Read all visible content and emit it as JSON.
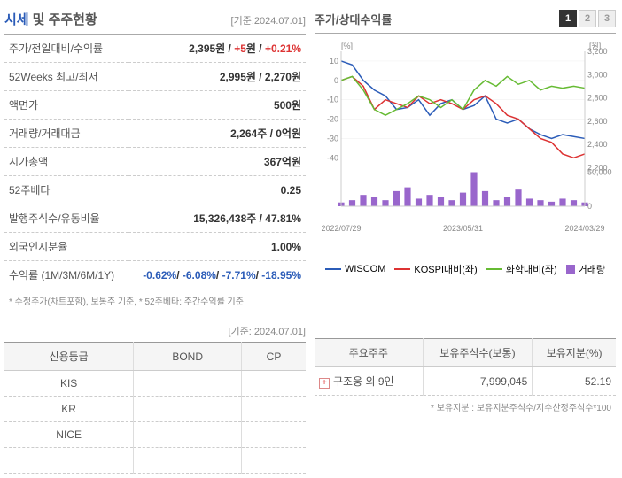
{
  "header": {
    "title_main": "시세",
    "title_sub": "및 주주현황",
    "date_ref": "[기준:2024.07.01]"
  },
  "stats": {
    "rows": [
      {
        "label": "주가/전일대비/수익률",
        "value_parts": [
          {
            "text": "2,395",
            "class": ""
          },
          {
            "text": "원 / ",
            "class": ""
          },
          {
            "text": "+5",
            "class": "red-text"
          },
          {
            "text": "원 / ",
            "class": ""
          },
          {
            "text": "+0.21%",
            "class": "red-text"
          }
        ]
      },
      {
        "label": "52Weeks 최고/최저",
        "value": "2,995원 / 2,270원"
      },
      {
        "label": "액면가",
        "value": "500원"
      },
      {
        "label": "거래량/거래대금",
        "value": "2,264주 / 0억원"
      },
      {
        "label": "시가총액",
        "value": "367억원"
      },
      {
        "label": "52주베타",
        "value": "0.25"
      },
      {
        "label": "발행주식수/유동비율",
        "value": "15,326,438주 / 47.81%"
      },
      {
        "label": "외국인지분율",
        "value": "1.00%"
      },
      {
        "label": "수익률 (1M/3M/6M/1Y)",
        "value_parts": [
          {
            "text": "-0.62%",
            "class": "blue-text"
          },
          {
            "text": "/ ",
            "class": ""
          },
          {
            "text": "-6.08%",
            "class": "blue-text"
          },
          {
            "text": "/ ",
            "class": ""
          },
          {
            "text": "-7.71%",
            "class": "blue-text"
          },
          {
            "text": "/ ",
            "class": ""
          },
          {
            "text": "-18.95%",
            "class": "blue-text"
          }
        ]
      }
    ],
    "footnote": "* 수정주가(차트포함), 보통주 기준, * 52주베타: 주간수익률 기준"
  },
  "chart": {
    "title": "주가/상대수익률",
    "tabs": [
      "1",
      "2",
      "3"
    ],
    "active_tab": 0,
    "y_left_label": "[%]",
    "y_right_label": "[원]",
    "y_left_ticks": [
      10,
      0,
      -10,
      -20,
      -30,
      -40
    ],
    "y_right_ticks": [
      3200,
      3000,
      2800,
      2600,
      2400,
      2200
    ],
    "y_right_vol": [
      50000,
      0
    ],
    "x_ticks": [
      "2022/07/29",
      "2023/05/31",
      "2024/03/29"
    ],
    "series": {
      "wiscom": {
        "color": "#2b5cb8",
        "label": "WISCOM",
        "points": [
          10,
          8,
          0,
          -5,
          -8,
          -15,
          -14,
          -10,
          -18,
          -12,
          -10,
          -15,
          -13,
          -8,
          -20,
          -22,
          -20,
          -25,
          -28,
          -30,
          -28,
          -29,
          -30
        ]
      },
      "kospi": {
        "color": "#d33",
        "label": "KOSPI대비(좌)",
        "points": [
          0,
          2,
          -3,
          -15,
          -10,
          -12,
          -14,
          -8,
          -12,
          -10,
          -12,
          -15,
          -10,
          -8,
          -12,
          -18,
          -20,
          -25,
          -30,
          -32,
          -38,
          -40,
          -38
        ]
      },
      "chem": {
        "color": "#6b3",
        "label": "화학대비(좌)",
        "points": [
          0,
          2,
          -5,
          -15,
          -18,
          -15,
          -12,
          -8,
          -10,
          -14,
          -10,
          -15,
          -5,
          0,
          -3,
          2,
          -2,
          0,
          -5,
          -3,
          -4,
          -3,
          -4
        ]
      },
      "volume": {
        "color": "#96c",
        "label": "거래량",
        "bars": [
          5,
          8,
          15,
          12,
          8,
          20,
          25,
          10,
          15,
          12,
          8,
          18,
          45,
          20,
          8,
          12,
          22,
          10,
          8,
          6,
          10,
          8,
          5
        ]
      }
    }
  },
  "ratings": {
    "date_ref": "[기준: 2024.07.01]",
    "headers": [
      "신용등급",
      "BOND",
      "CP"
    ],
    "rows": [
      {
        "agency": "KIS",
        "bond": "",
        "cp": ""
      },
      {
        "agency": "KR",
        "bond": "",
        "cp": ""
      },
      {
        "agency": "NICE",
        "bond": "",
        "cp": ""
      },
      {
        "agency": "",
        "bond": "",
        "cp": ""
      }
    ]
  },
  "shareholders": {
    "headers": [
      "주요주주",
      "보유주식수(보통)",
      "보유지분(%)"
    ],
    "rows": [
      {
        "name": "구조웅 외 9인",
        "shares": "7,999,045",
        "pct": "52.19",
        "expandable": true
      }
    ],
    "footnote": "* 보유지분 : 보유지분주식수/지수산정주식수*100"
  }
}
